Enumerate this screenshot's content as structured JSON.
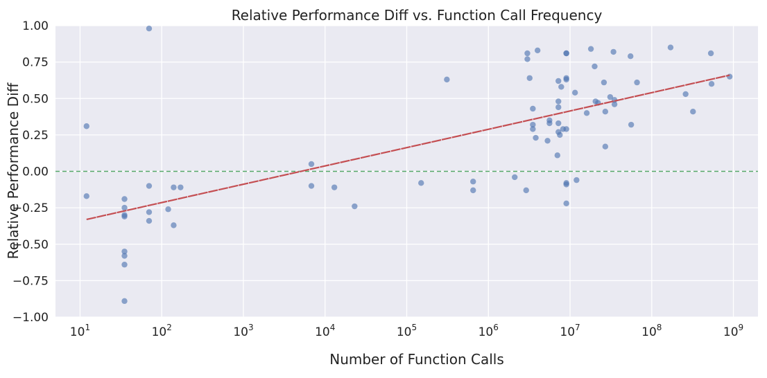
{
  "chart_data": {
    "type": "scatter",
    "title": "Relative Performance Diff vs. Function Call Frequency",
    "xlabel": "Number of Function Calls",
    "ylabel": "Relative Performance Diff",
    "xscale": "log",
    "xlim": [
      5,
      2000000000
    ],
    "ylim": [
      -1.0,
      1.0
    ],
    "x_ticks": [
      {
        "base": "10",
        "exp": "1",
        "value": 10
      },
      {
        "base": "10",
        "exp": "2",
        "value": 100
      },
      {
        "base": "10",
        "exp": "3",
        "value": 1000
      },
      {
        "base": "10",
        "exp": "4",
        "value": 10000
      },
      {
        "base": "10",
        "exp": "5",
        "value": 100000
      },
      {
        "base": "10",
        "exp": "6",
        "value": 1000000
      },
      {
        "base": "10",
        "exp": "7",
        "value": 10000000
      },
      {
        "base": "10",
        "exp": "8",
        "value": 100000000
      },
      {
        "base": "10",
        "exp": "9",
        "value": 1000000000
      }
    ],
    "y_ticks": [
      {
        "label": "1.00",
        "value": 1.0
      },
      {
        "label": "0.75",
        "value": 0.75
      },
      {
        "label": "0.50",
        "value": 0.5
      },
      {
        "label": "0.25",
        "value": 0.25
      },
      {
        "label": "0.00",
        "value": 0.0
      },
      {
        "label": "−0.25",
        "value": -0.25
      },
      {
        "label": "−0.50",
        "value": -0.5
      },
      {
        "label": "−0.75",
        "value": -0.75
      },
      {
        "label": "−1.00",
        "value": -1.0
      }
    ],
    "grid": true,
    "reference_line": {
      "y": 0.0,
      "style": "dashed",
      "color": "#55a868"
    },
    "trend_line": {
      "x": [
        12,
        900000000
      ],
      "y": [
        -0.33,
        0.66
      ],
      "color": "#c44e52"
    },
    "colors": {
      "background": "#eaeaf2",
      "points": "#4c72b0",
      "grid": "#ffffff"
    },
    "points": [
      {
        "x": 12,
        "y": 0.31
      },
      {
        "x": 12,
        "y": -0.17
      },
      {
        "x": 35,
        "y": -0.19
      },
      {
        "x": 35,
        "y": -0.25
      },
      {
        "x": 35,
        "y": -0.3
      },
      {
        "x": 35,
        "y": -0.31
      },
      {
        "x": 35,
        "y": -0.55
      },
      {
        "x": 35,
        "y": -0.58
      },
      {
        "x": 35,
        "y": -0.64
      },
      {
        "x": 35,
        "y": -0.89
      },
      {
        "x": 70,
        "y": 0.98
      },
      {
        "x": 70,
        "y": -0.1
      },
      {
        "x": 70,
        "y": -0.28
      },
      {
        "x": 70,
        "y": -0.34
      },
      {
        "x": 120,
        "y": -0.26
      },
      {
        "x": 140,
        "y": -0.11
      },
      {
        "x": 140,
        "y": -0.37
      },
      {
        "x": 170,
        "y": -0.11
      },
      {
        "x": 6800,
        "y": 0.05
      },
      {
        "x": 6800,
        "y": -0.1
      },
      {
        "x": 13000,
        "y": -0.11
      },
      {
        "x": 23000,
        "y": -0.24
      },
      {
        "x": 150000,
        "y": -0.08
      },
      {
        "x": 310000,
        "y": 0.63
      },
      {
        "x": 650000,
        "y": -0.07
      },
      {
        "x": 650000,
        "y": -0.13
      },
      {
        "x": 2100000,
        "y": -0.04
      },
      {
        "x": 2900000,
        "y": -0.13
      },
      {
        "x": 3000000,
        "y": 0.81
      },
      {
        "x": 3000000,
        "y": 0.77
      },
      {
        "x": 3200000,
        "y": 0.64
      },
      {
        "x": 3500000,
        "y": 0.43
      },
      {
        "x": 3500000,
        "y": 0.32
      },
      {
        "x": 3500000,
        "y": 0.29
      },
      {
        "x": 3800000,
        "y": 0.23
      },
      {
        "x": 4000000,
        "y": 0.83
      },
      {
        "x": 5300000,
        "y": 0.21
      },
      {
        "x": 5600000,
        "y": 0.35
      },
      {
        "x": 5600000,
        "y": 0.33
      },
      {
        "x": 7000000,
        "y": 0.11
      },
      {
        "x": 7200000,
        "y": 0.62
      },
      {
        "x": 7200000,
        "y": 0.48
      },
      {
        "x": 7200000,
        "y": 0.44
      },
      {
        "x": 7200000,
        "y": 0.33
      },
      {
        "x": 7200000,
        "y": 0.27
      },
      {
        "x": 7500000,
        "y": 0.25
      },
      {
        "x": 7800000,
        "y": 0.58
      },
      {
        "x": 8200000,
        "y": 0.29
      },
      {
        "x": 9000000,
        "y": 0.81
      },
      {
        "x": 9000000,
        "y": 0.81
      },
      {
        "x": 9000000,
        "y": 0.64
      },
      {
        "x": 9000000,
        "y": 0.63
      },
      {
        "x": 9000000,
        "y": 0.29
      },
      {
        "x": 9000000,
        "y": -0.08
      },
      {
        "x": 9000000,
        "y": -0.09
      },
      {
        "x": 9000000,
        "y": -0.22
      },
      {
        "x": 11500000,
        "y": 0.54
      },
      {
        "x": 12000000,
        "y": -0.06
      },
      {
        "x": 16000000,
        "y": 0.4
      },
      {
        "x": 18000000,
        "y": 0.84
      },
      {
        "x": 20000000,
        "y": 0.72
      },
      {
        "x": 20500000,
        "y": 0.48
      },
      {
        "x": 22000000,
        "y": 0.47
      },
      {
        "x": 26000000,
        "y": 0.61
      },
      {
        "x": 27000000,
        "y": 0.41
      },
      {
        "x": 27000000,
        "y": 0.17
      },
      {
        "x": 31000000,
        "y": 0.51
      },
      {
        "x": 34000000,
        "y": 0.82
      },
      {
        "x": 35000000,
        "y": 0.49
      },
      {
        "x": 35000000,
        "y": 0.46
      },
      {
        "x": 55000000,
        "y": 0.79
      },
      {
        "x": 56000000,
        "y": 0.32
      },
      {
        "x": 66000000,
        "y": 0.61
      },
      {
        "x": 170000000,
        "y": 0.85
      },
      {
        "x": 260000000,
        "y": 0.53
      },
      {
        "x": 320000000,
        "y": 0.41
      },
      {
        "x": 530000000,
        "y": 0.81
      },
      {
        "x": 540000000,
        "y": 0.6
      },
      {
        "x": 900000000,
        "y": 0.65
      }
    ]
  }
}
